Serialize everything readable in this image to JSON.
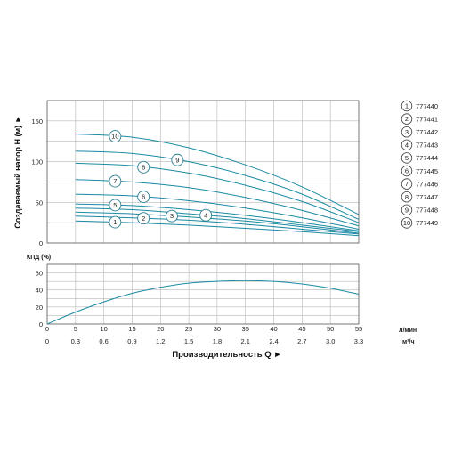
{
  "colors": {
    "curve": "#1a8aa3",
    "grid": "#b8b8b8",
    "frame": "#555555",
    "marker_stroke": "#2b7f93"
  },
  "chart_data": [
    {
      "type": "line",
      "title": "",
      "ylabel": "Создаваемый напор Н (м) ►",
      "xlabel": "",
      "ylim": [
        0,
        175
      ],
      "xlim": [
        0,
        55
      ],
      "yticks": [
        0,
        50,
        100,
        150
      ],
      "xgrid": [
        0,
        5,
        10,
        15,
        20,
        25,
        30,
        35,
        40,
        45,
        50,
        55
      ],
      "grid": true,
      "legend": "right",
      "series": [
        {
          "name": "777440",
          "marker": "1",
          "x": [
            5,
            15,
            25,
            35,
            45,
            55
          ],
          "y": [
            27,
            25,
            22,
            18,
            14,
            9
          ]
        },
        {
          "name": "777441",
          "marker": "2",
          "x": [
            5,
            15,
            25,
            35,
            45,
            55
          ],
          "y": [
            33,
            31,
            28,
            23,
            17,
            11
          ]
        },
        {
          "name": "777442",
          "marker": "3",
          "x": [
            5,
            15,
            25,
            35,
            45,
            55
          ],
          "y": [
            38,
            36,
            32,
            27,
            20,
            12
          ]
        },
        {
          "name": "777443",
          "marker": "4",
          "x": [
            5,
            15,
            25,
            35,
            45,
            55
          ],
          "y": [
            43,
            41,
            36,
            30,
            22,
            14
          ]
        },
        {
          "name": "777444",
          "marker": "5",
          "x": [
            5,
            15,
            25,
            35,
            45,
            55
          ],
          "y": [
            48,
            46,
            41,
            34,
            25,
            15
          ]
        },
        {
          "name": "777445",
          "marker": "6",
          "x": [
            5,
            15,
            25,
            35,
            45,
            55
          ],
          "y": [
            60,
            58,
            52,
            43,
            31,
            17
          ]
        },
        {
          "name": "777446",
          "marker": "7",
          "x": [
            5,
            15,
            25,
            35,
            45,
            55
          ],
          "y": [
            78,
            75,
            68,
            56,
            40,
            21
          ]
        },
        {
          "name": "777447",
          "marker": "8",
          "x": [
            5,
            15,
            25,
            35,
            45,
            55
          ],
          "y": [
            98,
            95,
            86,
            71,
            51,
            25
          ]
        },
        {
          "name": "777448",
          "marker": "9",
          "x": [
            5,
            15,
            25,
            35,
            45,
            55
          ],
          "y": [
            113,
            110,
            100,
            83,
            60,
            29
          ]
        },
        {
          "name": "777449",
          "marker": "10",
          "x": [
            5,
            15,
            25,
            35,
            45,
            55
          ],
          "y": [
            134,
            130,
            117,
            96,
            69,
            35
          ]
        }
      ]
    },
    {
      "type": "line",
      "title": "",
      "ylabel": "КПД (%)",
      "xlabel": "Производительность Q ►",
      "ylim": [
        0,
        70
      ],
      "xlim": [
        0,
        55
      ],
      "yticks": [
        0,
        20,
        40,
        60
      ],
      "xticks_lmin": [
        "0",
        "5",
        "10",
        "15",
        "20",
        "25",
        "30",
        "35",
        "40",
        "45",
        "50",
        "55"
      ],
      "xticks_m3h": [
        "0",
        "0.3",
        "0.6",
        "0.9",
        "1.2",
        "1.5",
        "1.8",
        "2.1",
        "2.4",
        "2.7",
        "3.0",
        "3.3"
      ],
      "unit_lmin": "л/мин",
      "unit_m3h": "м³/ч",
      "grid": true,
      "series": [
        {
          "x": [
            0,
            5,
            10,
            15,
            20,
            25,
            30,
            35,
            40,
            45,
            50,
            55
          ],
          "y": [
            0,
            14,
            26,
            36,
            43,
            48,
            50,
            51,
            50,
            47,
            42,
            35
          ]
        }
      ]
    }
  ]
}
